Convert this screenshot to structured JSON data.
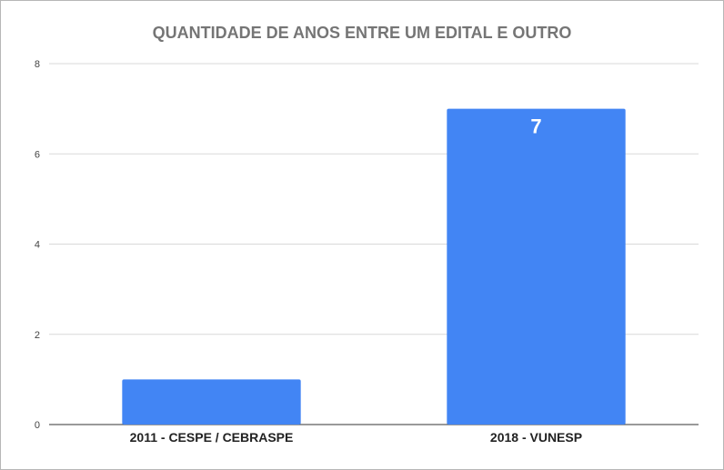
{
  "chart_data": {
    "type": "bar",
    "title": "QUANTIDADE DE ANOS ENTRE UM EDITAL E OUTRO",
    "categories": [
      "2011 - CESPE / CEBRASPE",
      "2018 - VUNESP"
    ],
    "values": [
      1,
      7
    ],
    "data_labels": [
      "",
      "7"
    ],
    "xlabel": "",
    "ylabel": "",
    "ylim": [
      0,
      8
    ],
    "yticks": [
      "0",
      "2",
      "4",
      "6",
      "8"
    ],
    "grid": true,
    "legend": "none",
    "colors": {
      "bar": "#4285f4",
      "grid": "#d9d9d9",
      "axis": "#333333"
    }
  }
}
